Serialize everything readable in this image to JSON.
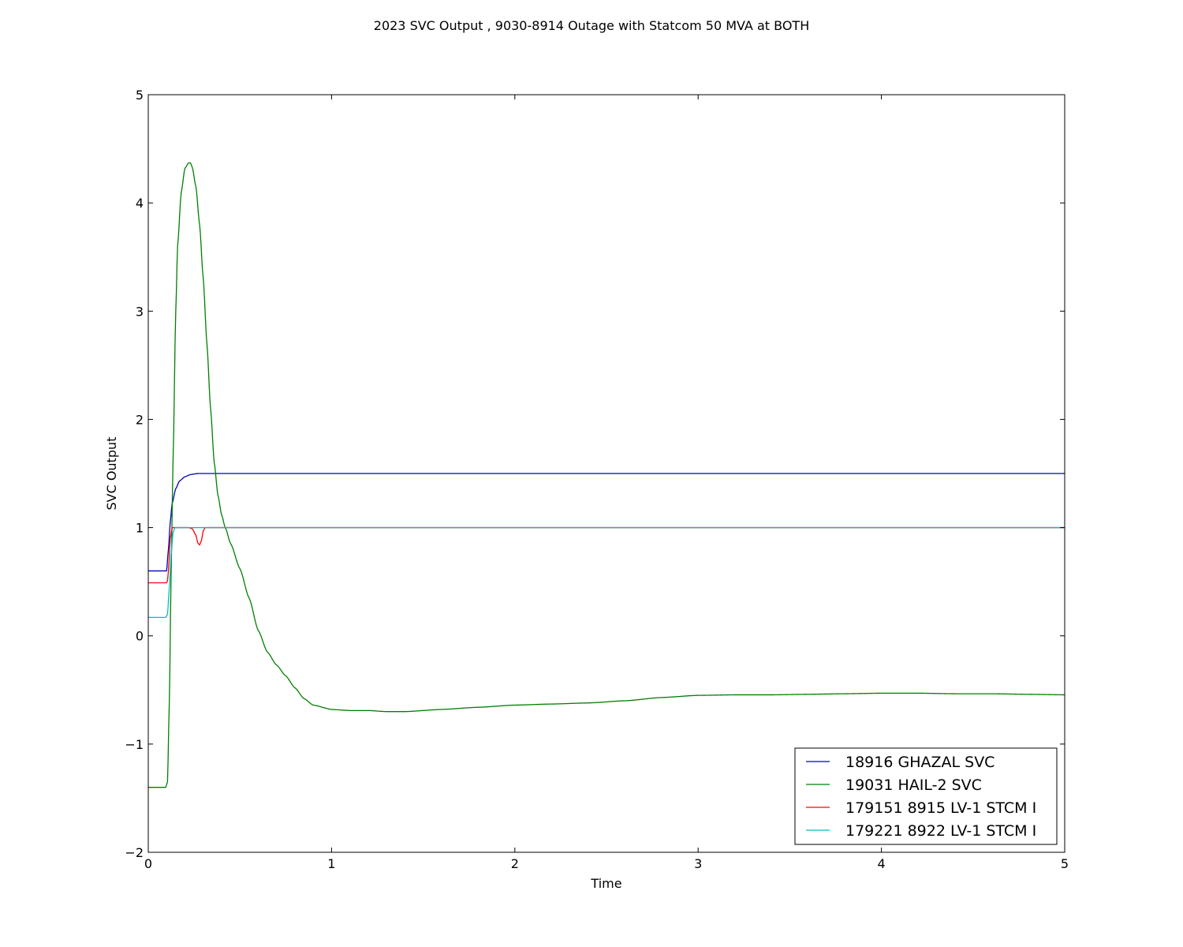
{
  "chart_data": {
    "type": "line",
    "title": "2023 SVC Output , 9030-8914 Outage with Statcom 50 MVA at BOTH",
    "xlabel": "Time",
    "ylabel": "SVC Output",
    "xlim": [
      0,
      5
    ],
    "ylim": [
      -2,
      5
    ],
    "xticks": [
      "0",
      "1",
      "2",
      "3",
      "4",
      "5"
    ],
    "yticks": [
      "−2",
      "−1",
      "0",
      "1",
      "2",
      "3",
      "4",
      "5"
    ],
    "grid": false,
    "legend_position": "lower-right",
    "series": [
      {
        "name": "18916 GHAZAL SVC",
        "color": "#0000bf",
        "x": [
          0,
          0.1,
          0.11,
          0.12,
          0.13,
          0.15,
          0.17,
          0.2,
          0.23,
          0.27,
          0.3,
          0.35,
          5
        ],
        "y": [
          0.6,
          0.6,
          0.8,
          1.05,
          1.22,
          1.36,
          1.43,
          1.47,
          1.49,
          1.5,
          1.5,
          1.5,
          1.5
        ]
      },
      {
        "name": "19031 HAIL-2 SVC",
        "color": "#007f00",
        "x": [
          0,
          0.095,
          0.105,
          0.115,
          0.125,
          0.135,
          0.15,
          0.16,
          0.18,
          0.2,
          0.22,
          0.23,
          0.24,
          0.26,
          0.28,
          0.3,
          0.32,
          0.34,
          0.36,
          0.38,
          0.4,
          0.42,
          0.45,
          0.5,
          0.55,
          0.6,
          0.65,
          0.7,
          0.75,
          0.8,
          0.85,
          0.9,
          1.0,
          1.1,
          1.2,
          1.3,
          1.4,
          1.6,
          1.8,
          2.0,
          2.2,
          2.4,
          2.6,
          2.8,
          3.0,
          3.2,
          3.4,
          3.6,
          3.8,
          4.0,
          4.2,
          4.4,
          4.6,
          4.8,
          5.0
        ],
        "y": [
          -1.4,
          -1.4,
          -1.35,
          -0.6,
          0.6,
          1.6,
          3.0,
          3.6,
          4.1,
          4.32,
          4.37,
          4.37,
          4.33,
          4.15,
          3.8,
          3.3,
          2.7,
          2.1,
          1.6,
          1.3,
          1.12,
          1.0,
          0.85,
          0.62,
          0.35,
          0.05,
          -0.15,
          -0.27,
          -0.37,
          -0.48,
          -0.58,
          -0.64,
          -0.68,
          -0.69,
          -0.69,
          -0.7,
          -0.7,
          -0.68,
          -0.66,
          -0.64,
          -0.63,
          -0.62,
          -0.6,
          -0.57,
          -0.55,
          -0.545,
          -0.545,
          -0.54,
          -0.535,
          -0.53,
          -0.53,
          -0.535,
          -0.535,
          -0.54,
          -0.545
        ]
      },
      {
        "name": "179151 8915 LV-1 STCM I",
        "color": "#ff0000",
        "x": [
          0,
          0.1,
          0.105,
          0.11,
          0.12,
          0.13,
          0.14,
          0.22,
          0.24,
          0.26,
          0.27,
          0.28,
          0.29,
          0.3,
          0.31,
          5
        ],
        "y": [
          0.49,
          0.49,
          0.51,
          0.6,
          0.9,
          1.0,
          1.0,
          1.0,
          0.99,
          0.93,
          0.86,
          0.84,
          0.88,
          0.97,
          1.0,
          1.0
        ]
      },
      {
        "name": "179221 8922 LV-1 STCM I",
        "color": "#00bfbf",
        "x": [
          0,
          0.095,
          0.105,
          0.115,
          0.125,
          0.135,
          0.145,
          5
        ],
        "y": [
          0.17,
          0.17,
          0.2,
          0.45,
          0.75,
          0.95,
          1.0,
          1.0
        ]
      }
    ]
  }
}
